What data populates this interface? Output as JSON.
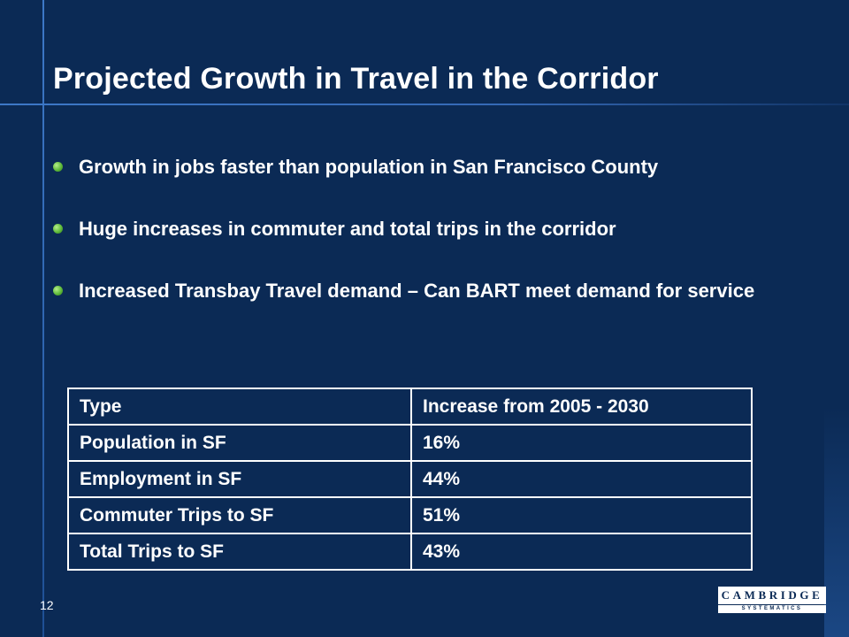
{
  "slide": {
    "title": "Projected Growth in Travel in the Corridor",
    "page_number": "12"
  },
  "bullets": [
    {
      "text": "Growth in jobs faster than population in San Francisco County"
    },
    {
      "text": "Huge increases in commuter and total trips in the corridor"
    },
    {
      "text": "Increased Transbay Travel demand – Can BART meet demand for service"
    }
  ],
  "table": {
    "headers": [
      "Type",
      "Increase from 2005 - 2030"
    ],
    "rows": [
      [
        "Population in SF",
        "16%"
      ],
      [
        "Employment in SF",
        "44%"
      ],
      [
        "Commuter Trips to SF",
        "51%"
      ],
      [
        "Total Trips to SF",
        "43%"
      ]
    ]
  },
  "logo": {
    "name": "CAMBRIDGE",
    "subtitle": "SYSTEMATICS"
  },
  "colors": {
    "background": "#0b2a55",
    "accent_line": "#3d78c7",
    "bullet": "#5fba3a",
    "text": "#ffffff"
  }
}
